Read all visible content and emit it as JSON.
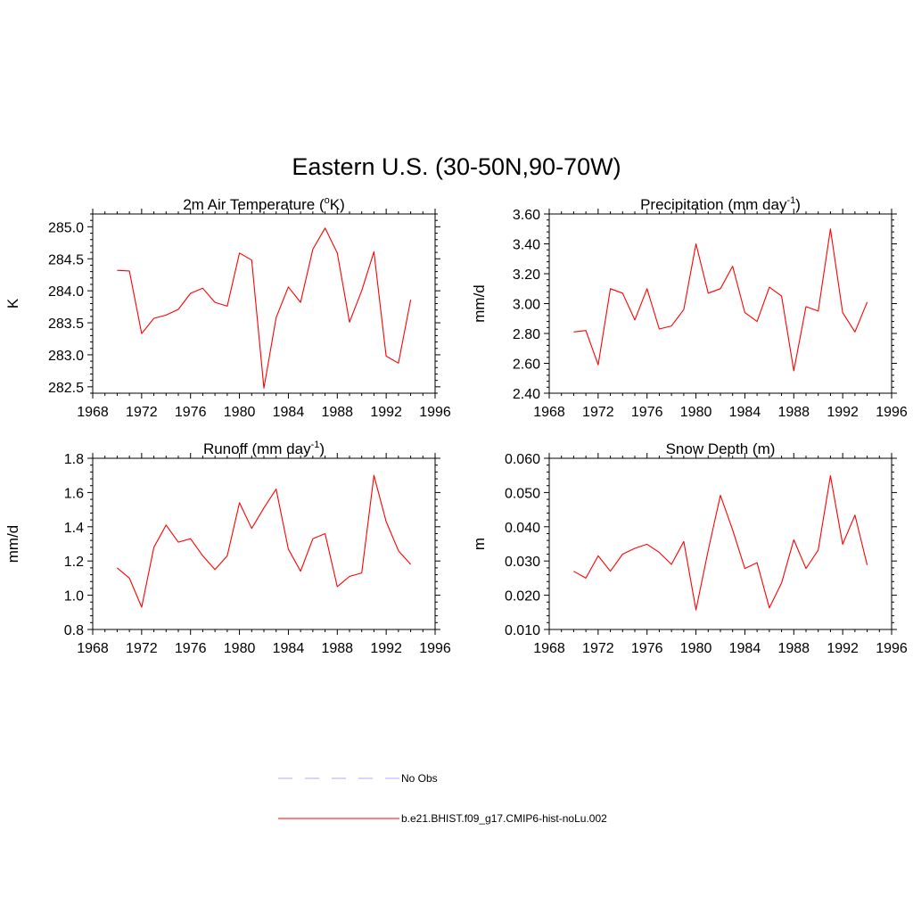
{
  "title": "Eastern U.S. (30-50N,90-70W)",
  "colors": {
    "series": "#ff0000",
    "obs": "#aaaaff",
    "axis": "#000000"
  },
  "legend": {
    "obs_label": "No Obs",
    "model_label": "b.e21.BHIST.f09_g17.CMIP6-hist-noLu.002"
  },
  "chart_data": [
    {
      "type": "line",
      "title": "2m Air Temperature (",
      "title_sup": "o",
      "title_tail": "K)",
      "ylabel": "K",
      "xlim": [
        1968,
        1996
      ],
      "ylim": [
        282.4,
        285.2
      ],
      "xticks": [
        1968,
        1972,
        1976,
        1980,
        1984,
        1988,
        1992,
        1996
      ],
      "yticks": [
        282.5,
        283.0,
        283.5,
        284.0,
        284.5,
        285.0
      ],
      "ytick_labels": [
        "282.5",
        "283.0",
        "283.5",
        "284.0",
        "284.5",
        "285.0"
      ],
      "series": [
        {
          "x": [
            1970,
            1971,
            1972,
            1973,
            1974,
            1975,
            1976,
            1977,
            1978,
            1979,
            1980,
            1981,
            1982,
            1983,
            1984,
            1985,
            1986,
            1987,
            1988,
            1989,
            1990,
            1991,
            1992,
            1993,
            1994
          ],
          "values": [
            284.32,
            284.31,
            283.33,
            283.57,
            283.62,
            283.71,
            283.96,
            284.04,
            283.82,
            283.76,
            284.59,
            284.48,
            282.48,
            283.58,
            284.06,
            283.82,
            284.65,
            284.98,
            284.59,
            283.51,
            284.0,
            284.61,
            282.98,
            282.87,
            283.86
          ]
        }
      ]
    },
    {
      "type": "line",
      "title": "Precipitation (mm day",
      "title_sup": "-1",
      "title_tail": ")",
      "ylabel": "mm/d",
      "xlim": [
        1968,
        1996
      ],
      "ylim": [
        2.4,
        3.6
      ],
      "xticks": [
        1968,
        1972,
        1976,
        1980,
        1984,
        1988,
        1992,
        1996
      ],
      "yticks": [
        2.4,
        2.6,
        2.8,
        3.0,
        3.2,
        3.4,
        3.6
      ],
      "ytick_labels": [
        "2.40",
        "2.60",
        "2.80",
        "3.00",
        "3.20",
        "3.40",
        "3.60"
      ],
      "series": [
        {
          "x": [
            1970,
            1971,
            1972,
            1973,
            1974,
            1975,
            1976,
            1977,
            1978,
            1979,
            1980,
            1981,
            1982,
            1983,
            1984,
            1985,
            1986,
            1987,
            1988,
            1989,
            1990,
            1991,
            1992,
            1993,
            1994
          ],
          "values": [
            2.81,
            2.82,
            2.59,
            3.1,
            3.07,
            2.89,
            3.1,
            2.83,
            2.85,
            2.96,
            3.4,
            3.07,
            3.1,
            3.25,
            2.94,
            2.88,
            3.11,
            3.05,
            2.55,
            2.98,
            2.95,
            3.5,
            2.94,
            2.81,
            3.01
          ]
        }
      ]
    },
    {
      "type": "line",
      "title": "Runoff (mm day",
      "title_sup": "-1",
      "title_tail": ")",
      "ylabel": "mm/d",
      "xlim": [
        1968,
        1996
      ],
      "ylim": [
        0.8,
        1.8
      ],
      "xticks": [
        1968,
        1972,
        1976,
        1980,
        1984,
        1988,
        1992,
        1996
      ],
      "yticks": [
        0.8,
        1.0,
        1.2,
        1.4,
        1.6,
        1.8
      ],
      "ytick_labels": [
        "0.8",
        "1.0",
        "1.2",
        "1.4",
        "1.6",
        "1.8"
      ],
      "series": [
        {
          "x": [
            1970,
            1971,
            1972,
            1973,
            1974,
            1975,
            1976,
            1977,
            1978,
            1979,
            1980,
            1981,
            1982,
            1983,
            1984,
            1985,
            1986,
            1987,
            1988,
            1989,
            1990,
            1991,
            1992,
            1993,
            1994
          ],
          "values": [
            1.16,
            1.1,
            0.93,
            1.28,
            1.41,
            1.31,
            1.33,
            1.23,
            1.15,
            1.23,
            1.54,
            1.39,
            1.51,
            1.62,
            1.27,
            1.14,
            1.33,
            1.36,
            1.05,
            1.11,
            1.13,
            1.7,
            1.43,
            1.26,
            1.18
          ]
        }
      ]
    },
    {
      "type": "line",
      "title": "Snow Depth (m)",
      "title_sup": "",
      "title_tail": "",
      "ylabel": "m",
      "xlim": [
        1968,
        1996
      ],
      "ylim": [
        0.01,
        0.06
      ],
      "xticks": [
        1968,
        1972,
        1976,
        1980,
        1984,
        1988,
        1992,
        1996
      ],
      "yticks": [
        0.01,
        0.02,
        0.03,
        0.04,
        0.05,
        0.06
      ],
      "ytick_labels": [
        "0.010",
        "0.020",
        "0.030",
        "0.040",
        "0.050",
        "0.060"
      ],
      "series": [
        {
          "x": [
            1970,
            1971,
            1972,
            1973,
            1974,
            1975,
            1976,
            1977,
            1978,
            1979,
            1980,
            1981,
            1982,
            1983,
            1984,
            1985,
            1986,
            1987,
            1988,
            1989,
            1990,
            1991,
            1992,
            1993,
            1994
          ],
          "values": [
            0.027,
            0.025,
            0.0315,
            0.027,
            0.032,
            0.0337,
            0.0349,
            0.0325,
            0.029,
            0.0357,
            0.0157,
            0.0331,
            0.0492,
            0.0391,
            0.0278,
            0.0295,
            0.0163,
            0.0236,
            0.0362,
            0.0278,
            0.0332,
            0.0549,
            0.0349,
            0.0434,
            0.0288
          ]
        }
      ]
    }
  ]
}
